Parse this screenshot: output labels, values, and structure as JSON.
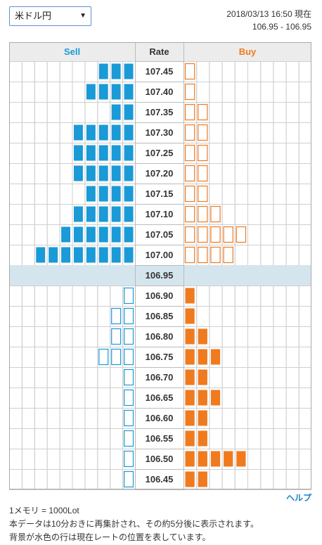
{
  "currency_select": {
    "value": "米ドル円",
    "caret": "▼"
  },
  "header": {
    "timestamp": "2018/03/13 16:50 現在",
    "range": "106.95 - 106.95"
  },
  "help_link": "ヘルプ",
  "footer": {
    "line1": "1メモリ = 1000Lot",
    "line2": "本データは10分おきに再集計され、その約5分後に表示されます。",
    "line3": "背景が水色の行は現在レートの位置を表しています。"
  },
  "colors": {
    "sell": "#1a9ad6",
    "buy": "#f07a1e",
    "current_row": "#d4e5ee",
    "header_bg": "#ececec",
    "grid": "#cfcfcf"
  },
  "chart_data": {
    "type": "order-book-bar",
    "columns": {
      "sell": "Sell",
      "rate": "Rate",
      "buy": "Buy"
    },
    "current_rate": "106.95",
    "cells_per_side": 10,
    "rows": [
      {
        "rate": "107.45",
        "sell": 3,
        "sell_style": "filled",
        "buy": 1,
        "buy_style": "outline"
      },
      {
        "rate": "107.40",
        "sell": 4,
        "sell_style": "filled",
        "buy": 1,
        "buy_style": "outline"
      },
      {
        "rate": "107.35",
        "sell": 2,
        "sell_style": "filled",
        "buy": 2,
        "buy_style": "outline"
      },
      {
        "rate": "107.30",
        "sell": 5,
        "sell_style": "filled",
        "buy": 2,
        "buy_style": "outline"
      },
      {
        "rate": "107.25",
        "sell": 5,
        "sell_style": "filled",
        "buy": 2,
        "buy_style": "outline"
      },
      {
        "rate": "107.20",
        "sell": 5,
        "sell_style": "filled",
        "buy": 2,
        "buy_style": "outline"
      },
      {
        "rate": "107.15",
        "sell": 4,
        "sell_style": "filled",
        "buy": 2,
        "buy_style": "outline"
      },
      {
        "rate": "107.10",
        "sell": 5,
        "sell_style": "filled",
        "buy": 3,
        "buy_style": "outline"
      },
      {
        "rate": "107.05",
        "sell": 6,
        "sell_style": "filled",
        "buy": 5,
        "buy_style": "outline"
      },
      {
        "rate": "107.00",
        "sell": 8,
        "sell_style": "filled",
        "buy": 4,
        "buy_style": "outline"
      },
      {
        "rate": "106.95",
        "sell": 0,
        "sell_style": "filled",
        "buy": 0,
        "buy_style": "filled",
        "current": true
      },
      {
        "rate": "106.90",
        "sell": 1,
        "sell_style": "outline",
        "buy": 1,
        "buy_style": "filled"
      },
      {
        "rate": "106.85",
        "sell": 2,
        "sell_style": "outline",
        "buy": 1,
        "buy_style": "filled"
      },
      {
        "rate": "106.80",
        "sell": 2,
        "sell_style": "outline",
        "buy": 2,
        "buy_style": "filled"
      },
      {
        "rate": "106.75",
        "sell": 3,
        "sell_style": "outline",
        "buy": 3,
        "buy_style": "filled"
      },
      {
        "rate": "106.70",
        "sell": 1,
        "sell_style": "outline",
        "buy": 2,
        "buy_style": "filled"
      },
      {
        "rate": "106.65",
        "sell": 1,
        "sell_style": "outline",
        "buy": 3,
        "buy_style": "filled"
      },
      {
        "rate": "106.60",
        "sell": 1,
        "sell_style": "outline",
        "buy": 2,
        "buy_style": "filled"
      },
      {
        "rate": "106.55",
        "sell": 1,
        "sell_style": "outline",
        "buy": 2,
        "buy_style": "filled"
      },
      {
        "rate": "106.50",
        "sell": 1,
        "sell_style": "outline",
        "buy": 5,
        "buy_style": "filled"
      },
      {
        "rate": "106.45",
        "sell": 1,
        "sell_style": "outline",
        "buy": 2,
        "buy_style": "filled"
      }
    ]
  }
}
